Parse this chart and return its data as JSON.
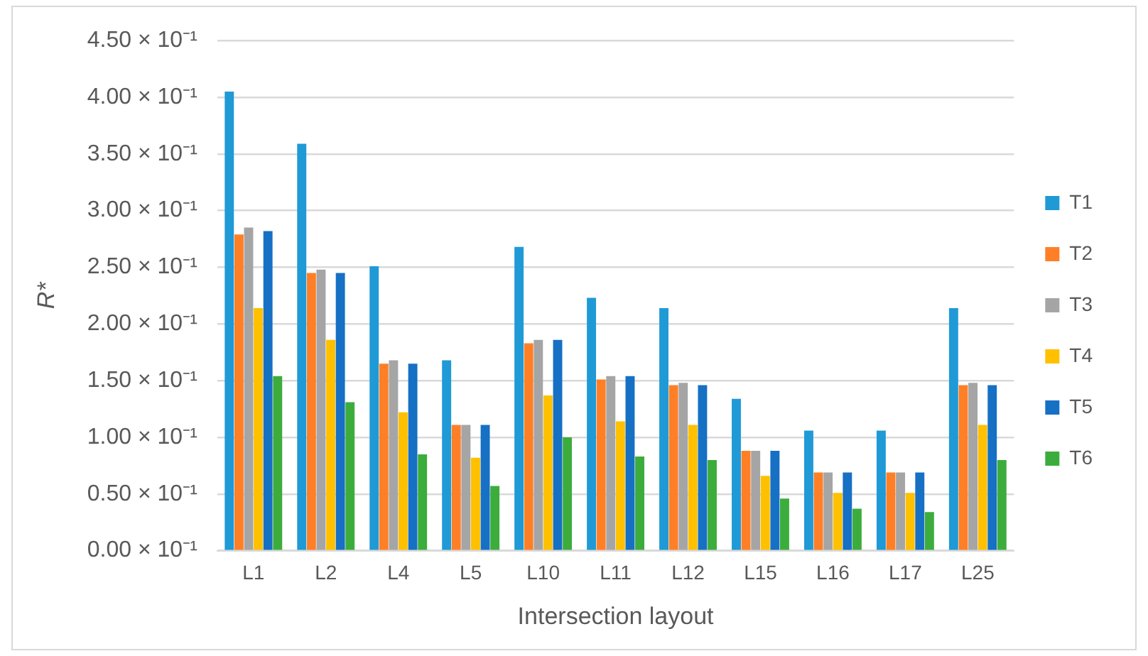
{
  "chart_data": {
    "type": "bar",
    "xlabel": "Intersection layout",
    "ylabel": "R*",
    "categories": [
      "L1",
      "L2",
      "L4",
      "L5",
      "L10",
      "L11",
      "L12",
      "L15",
      "L16",
      "L17",
      "L25"
    ],
    "series": [
      {
        "name": "T1",
        "color": "#1f9ad6",
        "values": [
          0.405,
          0.359,
          0.251,
          0.168,
          0.268,
          0.223,
          0.214,
          0.134,
          0.106,
          0.106,
          0.214
        ]
      },
      {
        "name": "T2",
        "color": "#ff7f27",
        "values": [
          0.279,
          0.245,
          0.165,
          0.111,
          0.183,
          0.151,
          0.146,
          0.088,
          0.069,
          0.069,
          0.146
        ]
      },
      {
        "name": "T3",
        "color": "#a5a5a5",
        "values": [
          0.285,
          0.248,
          0.168,
          0.111,
          0.186,
          0.154,
          0.148,
          0.088,
          0.069,
          0.069,
          0.148
        ]
      },
      {
        "name": "T4",
        "color": "#ffc000",
        "values": [
          0.214,
          0.186,
          0.122,
          0.082,
          0.137,
          0.114,
          0.111,
          0.066,
          0.051,
          0.051,
          0.111
        ]
      },
      {
        "name": "T5",
        "color": "#1670c4",
        "values": [
          0.282,
          0.245,
          0.165,
          0.111,
          0.186,
          0.154,
          0.146,
          0.088,
          0.069,
          0.069,
          0.146
        ]
      },
      {
        "name": "T6",
        "color": "#3cad3c",
        "values": [
          0.154,
          0.131,
          0.085,
          0.057,
          0.1,
          0.083,
          0.08,
          0.046,
          0.037,
          0.034,
          0.08
        ]
      }
    ],
    "ylim": [
      0,
      0.45
    ],
    "yticks": [
      {
        "value": 0,
        "label": "0.00 × 10⁻¹"
      },
      {
        "value": 0.05,
        "label": "0.50 × 10⁻¹"
      },
      {
        "value": 0.1,
        "label": "1.00 × 10⁻¹"
      },
      {
        "value": 0.15,
        "label": "1.50 × 10⁻¹"
      },
      {
        "value": 0.2,
        "label": "2.00 × 10⁻¹"
      },
      {
        "value": 0.25,
        "label": "2.50 × 10⁻¹"
      },
      {
        "value": 0.3,
        "label": "3.00 × 10⁻¹"
      },
      {
        "value": 0.35,
        "label": "3.50 × 10⁻¹"
      },
      {
        "value": 0.4,
        "label": "4.00 × 10⁻¹"
      },
      {
        "value": 0.45,
        "label": "4.50 × 10⁻¹"
      }
    ],
    "grid": "y",
    "legend": "right"
  }
}
